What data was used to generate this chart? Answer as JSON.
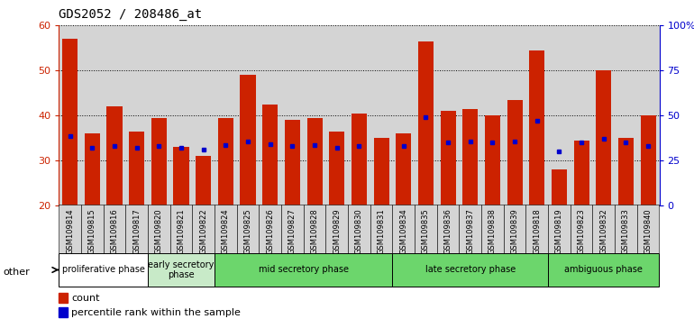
{
  "title": "GDS2052 / 208486_at",
  "samples": [
    "GSM109814",
    "GSM109815",
    "GSM109816",
    "GSM109817",
    "GSM109820",
    "GSM109821",
    "GSM109822",
    "GSM109824",
    "GSM109825",
    "GSM109826",
    "GSM109827",
    "GSM109828",
    "GSM109829",
    "GSM109830",
    "GSM109831",
    "GSM109834",
    "GSM109835",
    "GSM109836",
    "GSM109837",
    "GSM109838",
    "GSM109839",
    "GSM109818",
    "GSM109819",
    "GSM109823",
    "GSM109832",
    "GSM109833",
    "GSM109840"
  ],
  "count_values": [
    57,
    36,
    42,
    36.5,
    39.5,
    33,
    31,
    39.5,
    49,
    42.5,
    39,
    39.5,
    36.5,
    40.5,
    35,
    36,
    56.5,
    41,
    41.5,
    40,
    43.5,
    54.5,
    28,
    34.5,
    50,
    35,
    40
  ],
  "percentile_values": [
    38.5,
    32,
    33,
    32,
    33,
    32,
    31,
    33.5,
    35.5,
    34,
    33,
    33.5,
    32,
    33,
    null,
    33,
    49,
    35,
    35.5,
    35,
    35.5,
    47,
    30,
    35,
    37,
    35,
    33
  ],
  "phase_labels": [
    "proliferative phase",
    "early secretory\nphase",
    "mid secretory phase",
    "late secretory phase",
    "ambiguous phase"
  ],
  "phase_ranges": [
    [
      0,
      4
    ],
    [
      4,
      7
    ],
    [
      7,
      15
    ],
    [
      15,
      22
    ],
    [
      22,
      27
    ]
  ],
  "phase_bg_colors": [
    "#ffffff",
    "#c8eac8",
    "#6cd66c",
    "#6cd66c",
    "#6cd66c"
  ],
  "bar_color": "#cc2200",
  "percentile_color": "#0000cc",
  "ylim_left": [
    20,
    60
  ],
  "ylim_right": [
    0,
    100
  ],
  "yticks_left": [
    20,
    30,
    40,
    50,
    60
  ],
  "yticks_right": [
    0,
    25,
    50,
    75,
    100
  ],
  "title_color": "#000000",
  "left_tick_color": "#cc2200",
  "right_tick_color": "#0000cc",
  "legend_items": [
    "count",
    "percentile rank within the sample"
  ],
  "plot_bg_color": "#d4d4d4",
  "xtick_bg_color": "#d4d4d4"
}
